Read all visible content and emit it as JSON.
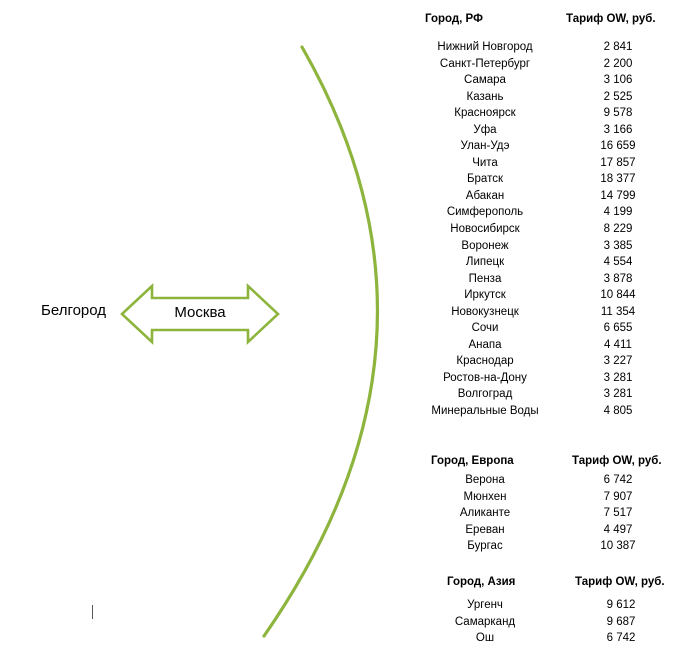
{
  "origin_city": "Белгород",
  "hub_city": "Москва",
  "colors": {
    "accent_green": "#8db53e"
  },
  "sections": [
    {
      "header_city": "Город, РФ",
      "header_price": "Тариф OW, руб.",
      "rows": [
        {
          "city": "Нижний Новгород",
          "price": "2 841"
        },
        {
          "city": "Санкт-Петербург",
          "price": "2 200"
        },
        {
          "city": "Самара",
          "price": "3 106"
        },
        {
          "city": "Казань",
          "price": "2 525"
        },
        {
          "city": "Красноярск",
          "price": "9 578"
        },
        {
          "city": "Уфа",
          "price": "3 166"
        },
        {
          "city": "Улан-Удэ",
          "price": "16 659"
        },
        {
          "city": "Чита",
          "price": "17 857"
        },
        {
          "city": "Братск",
          "price": "18 377"
        },
        {
          "city": "Абакан",
          "price": "14 799"
        },
        {
          "city": "Симферополь",
          "price": "4 199"
        },
        {
          "city": "Новосибирск",
          "price": "8 229"
        },
        {
          "city": "Воронеж",
          "price": "3 385"
        },
        {
          "city": "Липецк",
          "price": "4 554"
        },
        {
          "city": "Пенза",
          "price": "3 878"
        },
        {
          "city": "Иркутск",
          "price": "10 844"
        },
        {
          "city": "Новокузнецк",
          "price": "11 354"
        },
        {
          "city": "Сочи",
          "price": "6 655"
        },
        {
          "city": "Анапа",
          "price": "4 411"
        },
        {
          "city": "Краснодар",
          "price": "3 227"
        },
        {
          "city": "Ростов-на-Дону",
          "price": "3 281"
        },
        {
          "city": "Волгоград",
          "price": "3 281"
        },
        {
          "city": "Минеральные Воды",
          "price": "4 805"
        }
      ]
    },
    {
      "header_city": "Город, Европа",
      "header_price": "Тариф OW, руб.",
      "rows": [
        {
          "city": "Верона",
          "price": "6 742"
        },
        {
          "city": "Мюнхен",
          "price": "7 907"
        },
        {
          "city": "Аликанте",
          "price": "7 517"
        },
        {
          "city": "Ереван",
          "price": "4 497"
        },
        {
          "city": "Бургас",
          "price": "10 387"
        }
      ]
    },
    {
      "header_city": "Город, Азия",
      "header_price": "Тариф OW, руб.",
      "rows": [
        {
          "city": "Ургенч",
          "price": "9 612"
        },
        {
          "city": "Самарканд",
          "price": "9 687"
        },
        {
          "city": "Ош",
          "price": "6 742"
        }
      ]
    }
  ]
}
